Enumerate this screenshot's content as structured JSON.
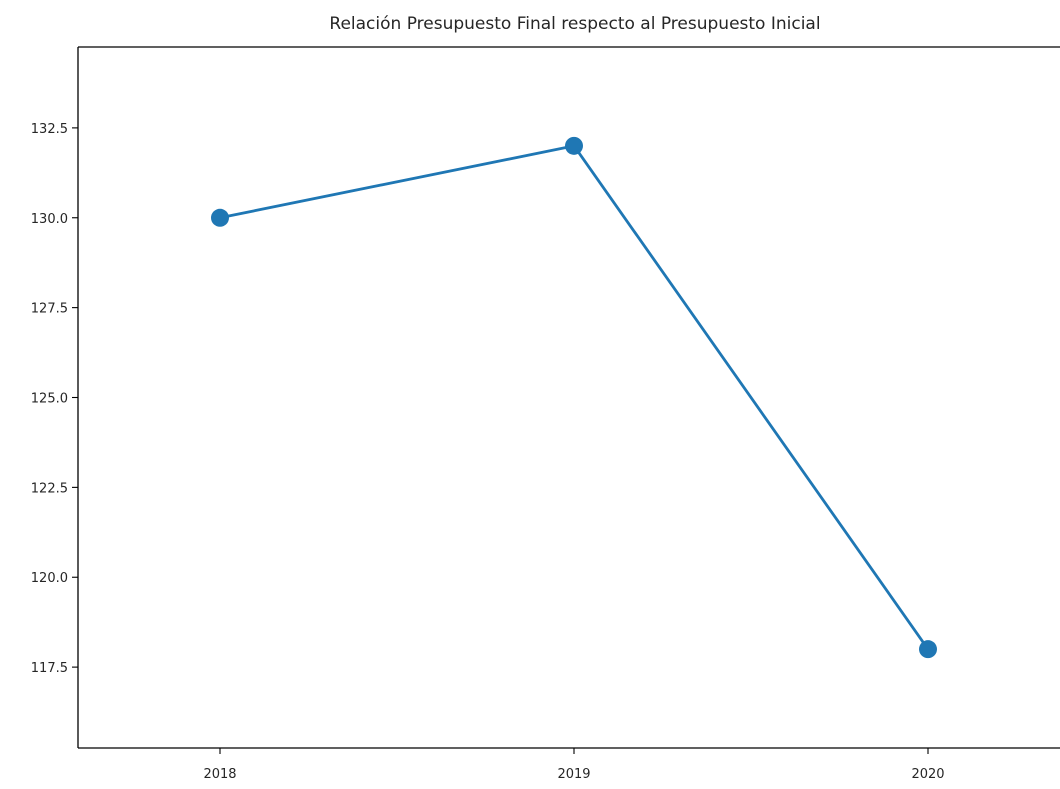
{
  "chart_data": {
    "type": "line",
    "title": "Relación Presupuesto Final respecto al Presupuesto Inicial",
    "xlabel": "",
    "ylabel": "",
    "x": [
      "2018",
      "2019",
      "2020"
    ],
    "series": [
      {
        "values": [
          130.0,
          132.0,
          118.0
        ],
        "color": "#1f77b4"
      }
    ],
    "ylim": [
      115.25,
      134.75
    ],
    "yticks": [
      117.5,
      120.0,
      122.5,
      125.0,
      127.5,
      130.0,
      132.5
    ],
    "ytick_labels": [
      "117.5",
      "120.0",
      "122.5",
      "125.0",
      "127.5",
      "130.0",
      "132.5"
    ],
    "grid": false,
    "legend": "none",
    "marker": "circle"
  }
}
